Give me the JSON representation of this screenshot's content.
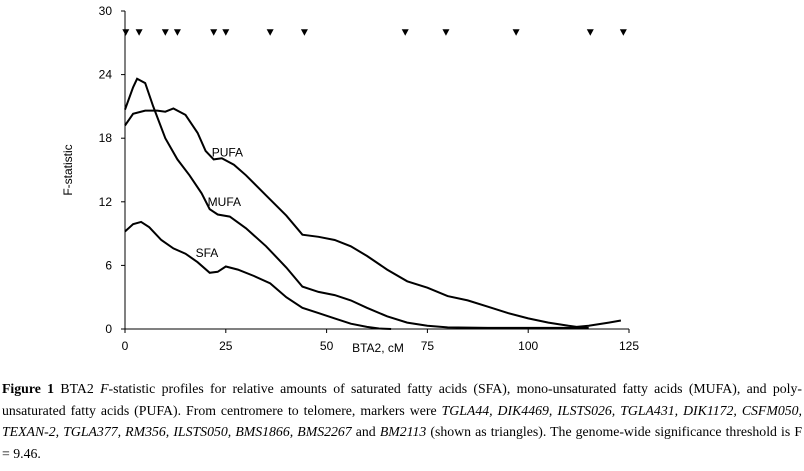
{
  "chart_data": {
    "type": "line",
    "x_label": "BTA2, cM",
    "y_label": "F-statistic",
    "xlim": [
      0,
      125
    ],
    "xticks": [
      0,
      25,
      50,
      75,
      100,
      125
    ],
    "ylim": [
      0,
      30
    ],
    "yticks": [
      0,
      6,
      12,
      18,
      24,
      30
    ],
    "color": "#000000",
    "series": [
      {
        "name": "PUFA",
        "x": [
          0,
          2,
          5,
          8,
          10,
          12,
          15,
          18,
          20,
          22,
          24,
          27,
          30,
          35,
          40,
          44,
          48,
          52,
          56,
          60,
          65,
          70,
          75,
          80,
          85,
          90,
          95,
          100,
          105,
          110,
          112,
          115,
          120,
          123
        ],
        "values": [
          19.2,
          20.3,
          20.6,
          20.6,
          20.5,
          20.8,
          20.2,
          18.5,
          16.8,
          16.0,
          16.1,
          15.5,
          14.5,
          12.6,
          10.7,
          8.9,
          8.7,
          8.4,
          7.8,
          6.9,
          5.6,
          4.5,
          3.9,
          3.1,
          2.7,
          2.1,
          1.5,
          1.0,
          0.6,
          0.3,
          0.2,
          0.3,
          0.6,
          0.8
        ]
      },
      {
        "name": "MUFA",
        "x": [
          0,
          2,
          3,
          5,
          7,
          10,
          13,
          16,
          19,
          21,
          23,
          26,
          30,
          35,
          40,
          44,
          48,
          52,
          56,
          60,
          65,
          70,
          75,
          80,
          90,
          100,
          110,
          115
        ],
        "values": [
          20.7,
          22.8,
          23.6,
          23.2,
          21.0,
          18.0,
          16.0,
          14.5,
          12.8,
          11.3,
          10.8,
          10.6,
          9.5,
          7.8,
          5.8,
          4.0,
          3.5,
          3.2,
          2.7,
          2.0,
          1.2,
          0.6,
          0.3,
          0.15,
          0.1,
          0.1,
          0.1,
          0.1
        ]
      },
      {
        "name": "SFA",
        "x": [
          0,
          2,
          4,
          6,
          9,
          12,
          15,
          18,
          21,
          23,
          25,
          28,
          32,
          36,
          40,
          44,
          48,
          52,
          56,
          60,
          63,
          66
        ],
        "values": [
          9.2,
          9.9,
          10.1,
          9.6,
          8.4,
          7.6,
          7.1,
          6.3,
          5.3,
          5.4,
          5.9,
          5.6,
          5.0,
          4.3,
          3.0,
          2.0,
          1.5,
          1.0,
          0.5,
          0.2,
          0.05,
          0
        ]
      }
    ],
    "markers": {
      "x": [
        0.2,
        3.5,
        10,
        13,
        22,
        25,
        36,
        44.5,
        69.5,
        79.6,
        97,
        115.4,
        123.6
      ],
      "values": [
        28,
        28,
        28,
        28,
        28,
        28,
        28,
        28,
        28,
        28,
        28,
        28,
        28
      ]
    }
  },
  "caption": [
    {
      "text": "Figure 1",
      "style": "bold"
    },
    {
      "text": " BTA2 ",
      "style": "normal"
    },
    {
      "text": "F",
      "style": "italic"
    },
    {
      "text": "-statistic profiles for relative amounts of saturated fatty acids (SFA), mono-unsaturated fatty acids (MUFA), and poly-unsaturated fatty acids (PUFA). From centromere to telomere, markers were ",
      "style": "normal"
    },
    {
      "text": "TGLA44, DIK4469, ILSTS026, TGLA431, DIK1172, CSFM050, TEXAN-2, TGLA377, RM356, ILSTS050, BMS1866, BMS2267",
      "style": "italic"
    },
    {
      "text": " and ",
      "style": "normal"
    },
    {
      "text": "BM2113",
      "style": "italic"
    },
    {
      "text": " (shown as triangles). The genome-wide significance threshold is F = 9.46.",
      "style": "normal"
    }
  ]
}
